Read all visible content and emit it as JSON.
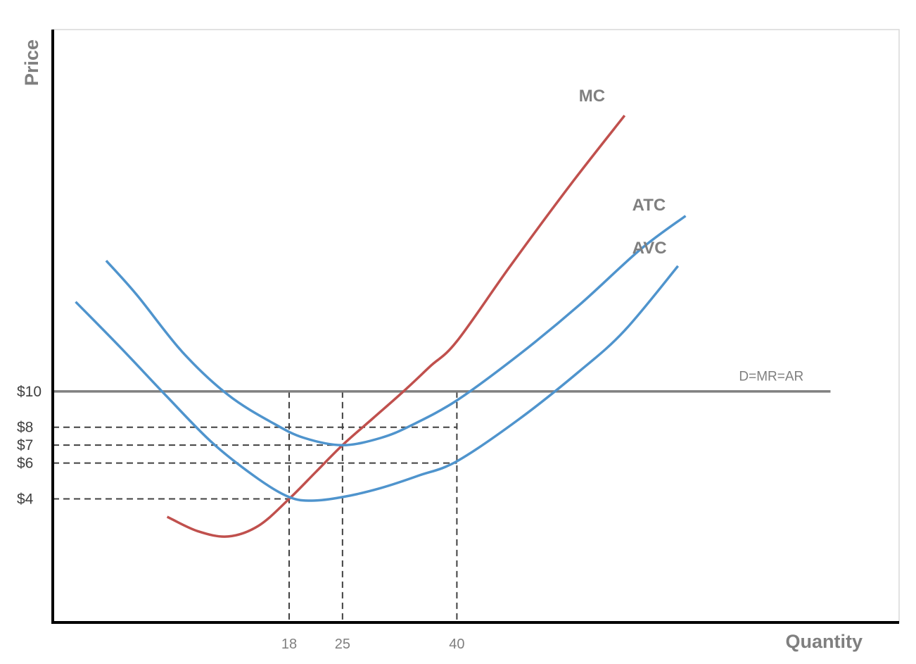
{
  "chart_data": {
    "type": "line",
    "title": "",
    "xlabel": "Quantity",
    "ylabel": "Price",
    "x_ticks": [
      "18",
      "25",
      "40"
    ],
    "y_ticks": [
      "$10",
      "$8",
      "$7",
      "$6",
      "$4"
    ],
    "x_tick_values": [
      18,
      25,
      40
    ],
    "y_tick_values": [
      10,
      8,
      7,
      6,
      4
    ],
    "xlim": [
      -13,
      98
    ],
    "ylim": [
      -2.9,
      30.2
    ],
    "grid": false,
    "colors": {
      "MC": "#c0504d",
      "ATC": "#4f94cd",
      "AVC": "#4f94cd",
      "D=MR=AR": "#808080",
      "axes": "#000000",
      "guides": "#404040"
    },
    "series": [
      {
        "name": "MC",
        "x": [
          2,
          6,
          10,
          14,
          18,
          21.5,
          25,
          29,
          33,
          36.5,
          40,
          47,
          55,
          62
        ],
        "y": [
          3.0,
          2.2,
          1.9,
          2.5,
          4.0,
          5.5,
          7.0,
          8.5,
          10.0,
          11.4,
          12.8,
          17.0,
          21.6,
          25.4
        ]
      },
      {
        "name": "ATC",
        "x": [
          -6,
          -2,
          4,
          10,
          16,
          20,
          25,
          30,
          34,
          40,
          48,
          56,
          64,
          70
        ],
        "y": [
          17.3,
          15.4,
          12.2,
          9.8,
          8.2,
          7.4,
          7.0,
          7.4,
          8.1,
          9.5,
          12.0,
          14.8,
          17.9,
          19.8
        ]
      },
      {
        "name": "AVC",
        "x": [
          -10,
          -4,
          2,
          8,
          14,
          18,
          21,
          25,
          30,
          35,
          40,
          48,
          56,
          62,
          69
        ],
        "y": [
          15.0,
          12.4,
          9.7,
          7.1,
          5.1,
          4.1,
          3.9,
          4.1,
          4.6,
          5.3,
          6.1,
          8.4,
          11.1,
          13.4,
          17.0
        ]
      }
    ],
    "horizontal_line": {
      "name": "D=MR=AR",
      "y": 10,
      "x_end": 89
    },
    "guides": {
      "horizontal": [
        {
          "y": 8,
          "x_end": 40
        },
        {
          "y": 7,
          "x_end": 25
        },
        {
          "y": 6,
          "x_end": 40
        },
        {
          "y": 4,
          "x_end": 18
        }
      ],
      "vertical": [
        {
          "x": 18,
          "y_end": 10
        },
        {
          "x": 25,
          "y_end": 10
        },
        {
          "x": 40,
          "y_end": 10
        }
      ]
    },
    "curve_labels": {
      "MC": {
        "x": 56,
        "y": 26.2
      },
      "ATC": {
        "x": 63,
        "y": 20.1
      },
      "AVC": {
        "x": 63,
        "y": 17.7
      },
      "D=MR=AR": {
        "x": 77,
        "y": 10.6
      }
    }
  }
}
